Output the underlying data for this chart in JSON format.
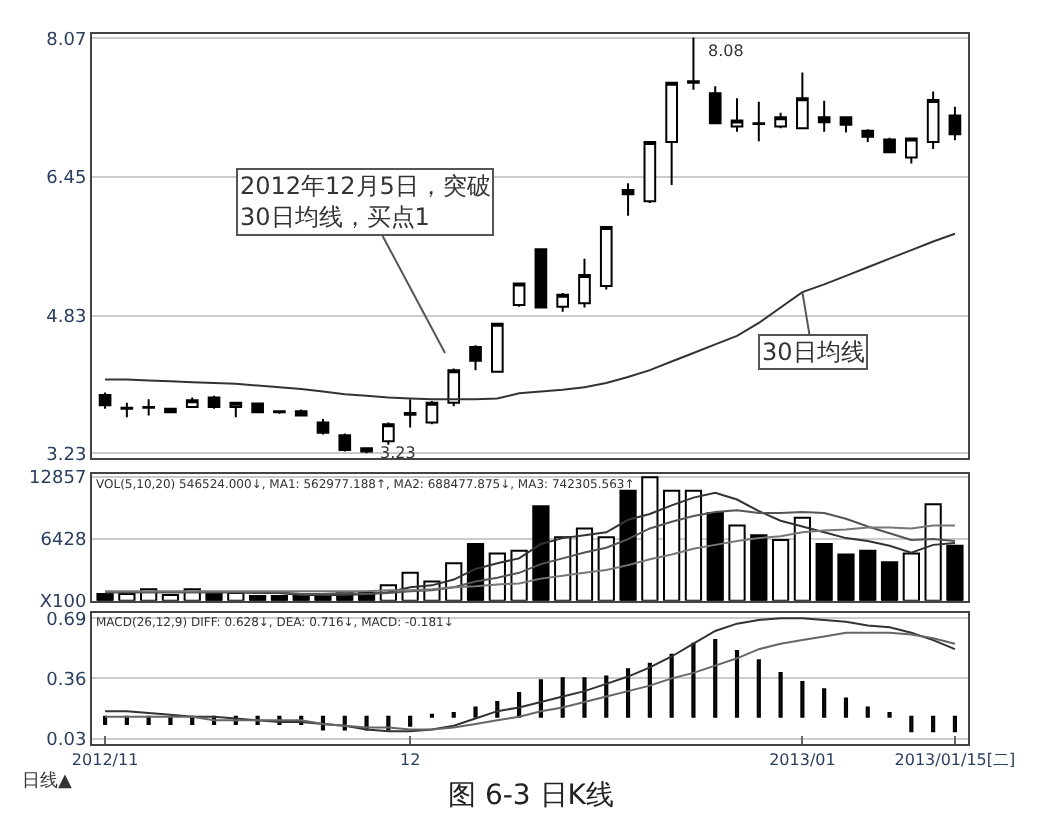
{
  "chart_data": [
    {
      "type": "candlestick",
      "categories": [
        null,
        null,
        null,
        null,
        null,
        null,
        null,
        null,
        null,
        null,
        null,
        null,
        null,
        null,
        null,
        null,
        null,
        null,
        null,
        null,
        null,
        null,
        null,
        null,
        null,
        null,
        null,
        null,
        null,
        null,
        null,
        null,
        null,
        null,
        null,
        null,
        null,
        null,
        null,
        null
      ],
      "ohlc": [
        [
          3.91,
          3.94,
          3.75,
          3.79
        ],
        [
          3.76,
          3.82,
          3.65,
          3.75
        ],
        [
          3.76,
          3.86,
          3.67,
          3.77
        ],
        [
          3.71,
          3.76,
          3.7,
          3.75
        ],
        [
          3.77,
          3.88,
          3.76,
          3.85
        ],
        [
          3.88,
          3.9,
          3.75,
          3.77
        ],
        [
          3.77,
          3.83,
          3.65,
          3.82
        ],
        [
          3.81,
          3.82,
          3.7,
          3.71
        ],
        [
          3.72,
          3.73,
          3.69,
          3.71
        ],
        [
          3.72,
          3.74,
          3.66,
          3.67
        ],
        [
          3.59,
          3.63,
          3.45,
          3.47
        ],
        [
          3.44,
          3.46,
          3.25,
          3.27
        ],
        [
          3.29,
          3.3,
          3.23,
          3.25
        ],
        [
          3.37,
          3.59,
          3.33,
          3.57
        ],
        [
          3.68,
          3.86,
          3.53,
          3.7
        ],
        [
          3.59,
          3.84,
          3.57,
          3.82
        ],
        [
          3.82,
          4.22,
          3.78,
          4.2
        ],
        [
          4.47,
          4.49,
          4.2,
          4.31
        ],
        [
          4.18,
          4.74,
          4.17,
          4.74
        ],
        [
          4.96,
          5.22,
          4.94,
          5.21
        ],
        [
          5.61,
          5.62,
          4.92,
          4.93
        ],
        [
          4.94,
          5.1,
          4.88,
          5.08
        ],
        [
          4.98,
          5.5,
          4.93,
          5.31
        ],
        [
          5.18,
          5.87,
          5.14,
          5.87
        ],
        [
          6.3,
          6.38,
          6.0,
          6.25
        ],
        [
          6.17,
          6.86,
          6.15,
          6.86
        ],
        [
          6.86,
          7.55,
          6.36,
          7.55
        ],
        [
          7.55,
          8.08,
          7.47,
          7.57
        ],
        [
          7.43,
          7.51,
          7.08,
          7.08
        ],
        [
          7.04,
          7.37,
          6.98,
          7.11
        ],
        [
          7.08,
          7.33,
          6.87,
          7.07
        ],
        [
          7.04,
          7.2,
          7.02,
          7.15
        ],
        [
          7.02,
          7.67,
          7.02,
          7.37
        ],
        [
          7.15,
          7.34,
          6.98,
          7.09
        ],
        [
          7.15,
          7.16,
          6.97,
          7.06
        ],
        [
          6.99,
          7.01,
          6.86,
          6.92
        ],
        [
          6.89,
          6.91,
          6.73,
          6.74
        ],
        [
          6.68,
          6.9,
          6.61,
          6.9
        ],
        [
          6.86,
          7.45,
          6.78,
          7.35
        ],
        [
          7.17,
          7.27,
          6.88,
          6.95
        ]
      ],
      "series": [
        {
          "type": "line",
          "name": "30日均线",
          "color": "#333333",
          "values": [
            4.09,
            4.09,
            4.08,
            4.07,
            4.06,
            4.05,
            4.04,
            4.02,
            4.0,
            3.98,
            3.95,
            3.92,
            3.9,
            3.88,
            3.87,
            3.86,
            3.86,
            3.86,
            3.87,
            3.93,
            3.95,
            3.97,
            4.0,
            4.05,
            4.12,
            4.2,
            4.3,
            4.4,
            4.5,
            4.6,
            4.75,
            4.93,
            5.11,
            5.2,
            5.3,
            5.4,
            5.5,
            5.6,
            5.7,
            5.79
          ]
        }
      ],
      "ylim": [
        3.18,
        8.12
      ],
      "yticks": [
        3.23,
        4.83,
        6.45,
        8.07
      ],
      "grid": "y",
      "tick_labels": "y",
      "annotations": [
        "2012年12月5日，突破30日均线，买点1",
        "8.08",
        "3.23"
      ]
    },
    {
      "type": "bar",
      "subtitle": "VOL(5,10,20) 546524.000↓, MA1: 562977.188↑, MA2: 688477.875↓, MA3: 742305.563↑",
      "categories": [
        null,
        null,
        null,
        null,
        null,
        null,
        null,
        null,
        null,
        null,
        null,
        null,
        null,
        null,
        null,
        null,
        null,
        null,
        null,
        null,
        null,
        null,
        null,
        null,
        null,
        null,
        null,
        null,
        null,
        null,
        null,
        null,
        null,
        null,
        null,
        null,
        null,
        null,
        null,
        null
      ],
      "series": [
        {
          "type": "bar",
          "values": [
            700,
            700,
            1200,
            600,
            1200,
            800,
            800,
            500,
            500,
            500,
            700,
            800,
            800,
            1600,
            2900,
            2000,
            3900,
            5900,
            4900,
            5200,
            9800,
            6600,
            7500,
            6600,
            11400,
            12800,
            11400,
            11400,
            9100,
            7800,
            6800,
            6300,
            8600,
            5900,
            4800,
            5200,
            4000,
            4900,
            10000,
            5700
          ],
          "colors": [
            "#000000",
            "#ffffff",
            "#ffffff",
            "#ffffff",
            "#ffffff",
            "#000000",
            "#ffffff",
            "#000000",
            "#000000",
            "#000000",
            "#000000",
            "#000000",
            "#000000",
            "#ffffff",
            "#ffffff",
            "#ffffff",
            "#ffffff",
            "#000000",
            "#ffffff",
            "#ffffff",
            "#000000",
            "#ffffff",
            "#ffffff",
            "#ffffff",
            "#000000",
            "#ffffff",
            "#ffffff",
            "#ffffff",
            "#000000",
            "#ffffff",
            "#000000",
            "#ffffff",
            "#ffffff",
            "#000000",
            "#000000",
            "#000000",
            "#000000",
            "#ffffff",
            "#ffffff",
            "#000000"
          ]
        },
        {
          "type": "line",
          "color": "#333333",
          "values": [
            900,
            900,
            900,
            900,
            900,
            900,
            900,
            800,
            800,
            600,
            600,
            600,
            700,
            900,
            1400,
            1600,
            2200,
            3300,
            3900,
            4400,
            5900,
            6500,
            6800,
            7100,
            8400,
            9000,
            9900,
            10700,
            11200,
            10500,
            9300,
            8300,
            7700,
            7100,
            6500,
            6200,
            5700,
            5000,
            5800,
            6000
          ]
        },
        {
          "type": "line",
          "color": "#555555",
          "values": [
            900,
            900,
            900,
            900,
            900,
            900,
            900,
            900,
            900,
            700,
            700,
            800,
            700,
            800,
            1000,
            1100,
            1400,
            2000,
            2400,
            2900,
            3800,
            4400,
            5000,
            5500,
            6400,
            7500,
            8200,
            8800,
            9200,
            9400,
            9100,
            9100,
            9200,
            9100,
            8500,
            7700,
            7000,
            6300,
            6400,
            6200
          ]
        },
        {
          "type": "line",
          "color": "#777777",
          "values": [
            1000,
            1000,
            1000,
            1000,
            1000,
            1000,
            1000,
            1000,
            1000,
            1000,
            1000,
            1000,
            1000,
            1100,
            1100,
            1200,
            1400,
            1500,
            1700,
            1800,
            2300,
            2600,
            2900,
            3200,
            3700,
            4300,
            4800,
            5400,
            5800,
            6200,
            6500,
            6700,
            7100,
            7300,
            7400,
            7600,
            7600,
            7500,
            7800,
            7800
          ]
        }
      ],
      "ylim": [
        0,
        13200
      ],
      "yticks": [
        {
          "value": 0,
          "label": "X100"
        },
        6428,
        12857
      ],
      "grid": "y",
      "tick_labels": "y"
    },
    {
      "type": "line",
      "title": "图 6-3 日K线",
      "subtitle": "MACD(26,12,9) DIFF: 0.628↓, DEA: 0.716↓, MACD: -0.181↓",
      "categories": [
        "2012/11",
        null,
        null,
        null,
        null,
        null,
        null,
        null,
        null,
        null,
        null,
        null,
        null,
        null,
        "12",
        null,
        null,
        null,
        null,
        null,
        null,
        null,
        null,
        null,
        null,
        null,
        null,
        null,
        null,
        null,
        null,
        null,
        "2013/01",
        null,
        null,
        null,
        null,
        null,
        null,
        "2013/01/15[二]"
      ],
      "series": [
        {
          "type": "bar",
          "color": "#555555",
          "base": [
            0.15,
            0.15,
            0.15,
            0.15,
            0.15,
            0.15,
            0.15,
            0.15,
            0.15,
            0.15,
            0.15,
            0.15,
            0.15,
            0.15,
            0.15,
            0.15,
            0.15,
            0.15,
            0.15,
            0.15,
            0.15,
            0.15,
            0.15,
            0.15,
            0.15,
            0.15,
            0.15,
            0.15,
            0.15,
            0.15,
            0.15,
            0.15,
            0.15,
            0.15,
            0.15,
            0.15,
            0.15,
            0.15,
            0.15,
            0.15
          ],
          "values": [
            -0.04,
            -0.04,
            -0.04,
            -0.04,
            -0.04,
            -0.04,
            -0.04,
            -0.04,
            -0.04,
            -0.04,
            -0.07,
            -0.07,
            -0.07,
            -0.07,
            -0.05,
            0.01,
            0.02,
            0.05,
            0.08,
            0.13,
            0.2,
            0.21,
            0.21,
            0.22,
            0.26,
            0.29,
            0.34,
            0.4,
            0.42,
            0.36,
            0.31,
            0.24,
            0.19,
            0.15,
            0.1,
            0.05,
            0.02,
            -0.08,
            -0.08,
            -0.08
          ]
        },
        {
          "type": "line",
          "color": "#333333",
          "values": [
            0.18,
            0.18,
            0.17,
            0.16,
            0.15,
            0.15,
            0.14,
            0.13,
            0.12,
            0.12,
            0.11,
            0.1,
            0.08,
            0.07,
            0.07,
            0.08,
            0.1,
            0.14,
            0.18,
            0.2,
            0.23,
            0.26,
            0.29,
            0.33,
            0.37,
            0.42,
            0.48,
            0.55,
            0.62,
            0.66,
            0.68,
            0.69,
            0.69,
            0.68,
            0.67,
            0.65,
            0.64,
            0.61,
            0.57,
            0.52
          ]
        },
        {
          "type": "line",
          "color": "#666666",
          "values": [
            0.15,
            0.15,
            0.15,
            0.15,
            0.15,
            0.13,
            0.13,
            0.13,
            0.13,
            0.13,
            0.11,
            0.1,
            0.09,
            0.09,
            0.08,
            0.08,
            0.09,
            0.11,
            0.13,
            0.15,
            0.18,
            0.2,
            0.23,
            0.26,
            0.29,
            0.32,
            0.36,
            0.39,
            0.43,
            0.47,
            0.52,
            0.55,
            0.57,
            0.59,
            0.61,
            0.61,
            0.61,
            0.6,
            0.58,
            0.55
          ]
        }
      ],
      "ylim": [
        0.0,
        0.72
      ],
      "yticks": [
        0.03,
        0.36,
        0.69
      ],
      "grid": "y",
      "annotations": [
        "日线▲"
      ]
    }
  ]
}
